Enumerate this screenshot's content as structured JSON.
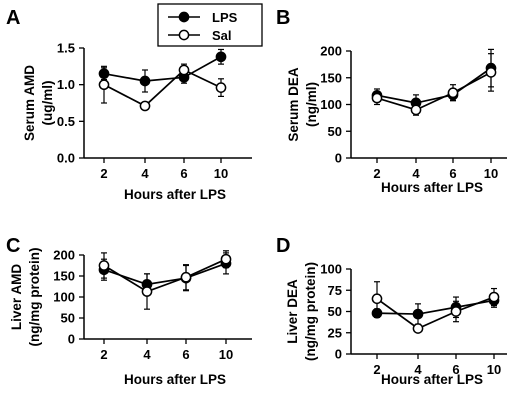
{
  "legend": {
    "entries": [
      {
        "label": "LPS",
        "marker": "filled-circle"
      },
      {
        "label": "Sal",
        "marker": "open-circle"
      }
    ]
  },
  "chart_data": [
    {
      "panel": "A",
      "type": "line",
      "xlabel": "Hours after LPS",
      "ylabel_lines": [
        "Serum AMD",
        "(ug/ml)"
      ],
      "categories": [
        "2",
        "4",
        "6",
        "10"
      ],
      "ylim": [
        0,
        1.5
      ],
      "yticks": [
        "0.0",
        "0.5",
        "1.0",
        "1.5"
      ],
      "ytick_values": [
        0,
        0.5,
        1.0,
        1.5
      ],
      "series": [
        {
          "name": "LPS",
          "values": [
            1.15,
            1.05,
            1.1,
            1.38
          ],
          "errors": [
            0.08,
            0.15,
            0.08,
            0.1
          ]
        },
        {
          "name": "Sal",
          "values": [
            1.0,
            0.71,
            1.2,
            0.96
          ],
          "errors": [
            0.25,
            0.02,
            0.08,
            0.12
          ]
        }
      ]
    },
    {
      "panel": "B",
      "type": "line",
      "xlabel": "Hours after LPS",
      "ylabel_lines": [
        "Serum DEA",
        "(ng/ml)"
      ],
      "categories": [
        "2",
        "4",
        "6",
        "10"
      ],
      "ylim": [
        0,
        200
      ],
      "yticks": [
        "0",
        "50",
        "100",
        "150",
        "200"
      ],
      "ytick_values": [
        0,
        50,
        100,
        150,
        200
      ],
      "series": [
        {
          "name": "LPS",
          "values": [
            117,
            103,
            118,
            168
          ],
          "errors": [
            12,
            15,
            10,
            35
          ]
        },
        {
          "name": "Sal",
          "values": [
            112,
            90,
            122,
            160
          ],
          "errors": [
            12,
            10,
            15,
            35
          ]
        }
      ]
    },
    {
      "panel": "C",
      "type": "line",
      "xlabel": "Hours after LPS",
      "ylabel_lines": [
        "Liver AMD",
        "(ng/mg protein)"
      ],
      "categories": [
        "2",
        "4",
        "6",
        "10"
      ],
      "ylim": [
        0,
        200
      ],
      "yticks": [
        "0",
        "50",
        "100",
        "150",
        "200"
      ],
      "ytick_values": [
        0,
        50,
        100,
        150,
        200
      ],
      "series": [
        {
          "name": "LPS",
          "values": [
            165,
            130,
            145,
            180
          ],
          "errors": [
            25,
            25,
            30,
            25
          ]
        },
        {
          "name": "Sal",
          "values": [
            175,
            113,
            147,
            190
          ],
          "errors": [
            30,
            42,
            30,
            20
          ]
        }
      ]
    },
    {
      "panel": "D",
      "type": "line",
      "xlabel": "Hours after LPS",
      "ylabel_lines": [
        "Liver DEA",
        "(ng/mg protein)"
      ],
      "categories": [
        "2",
        "4",
        "6",
        "10"
      ],
      "ylim": [
        0,
        100
      ],
      "yticks": [
        "0",
        "25",
        "50",
        "75",
        "100"
      ],
      "ytick_values": [
        0,
        25,
        50,
        75,
        100
      ],
      "series": [
        {
          "name": "LPS",
          "values": [
            48,
            47,
            55,
            63
          ],
          "errors": [
            5,
            12,
            12,
            8
          ]
        },
        {
          "name": "Sal",
          "values": [
            65,
            30,
            50,
            67
          ],
          "errors": [
            20,
            4,
            12,
            10
          ]
        }
      ]
    }
  ]
}
